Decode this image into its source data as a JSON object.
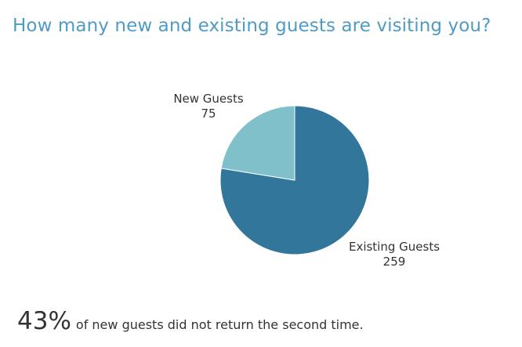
{
  "header": {
    "title": "How many new and existing guests are visiting you?"
  },
  "chart_data": {
    "type": "pie",
    "title": "How many new and existing guests are visiting you?",
    "slices": [
      {
        "label": "Existing Guests",
        "value": 259,
        "color": "#33769b"
      },
      {
        "label": "New Guests",
        "value": 75,
        "color": "#7fc0ca"
      }
    ],
    "legend": "none",
    "data_labels": "outside"
  },
  "footer": {
    "percent": "43%",
    "text": "of new guests did not return the second time."
  }
}
